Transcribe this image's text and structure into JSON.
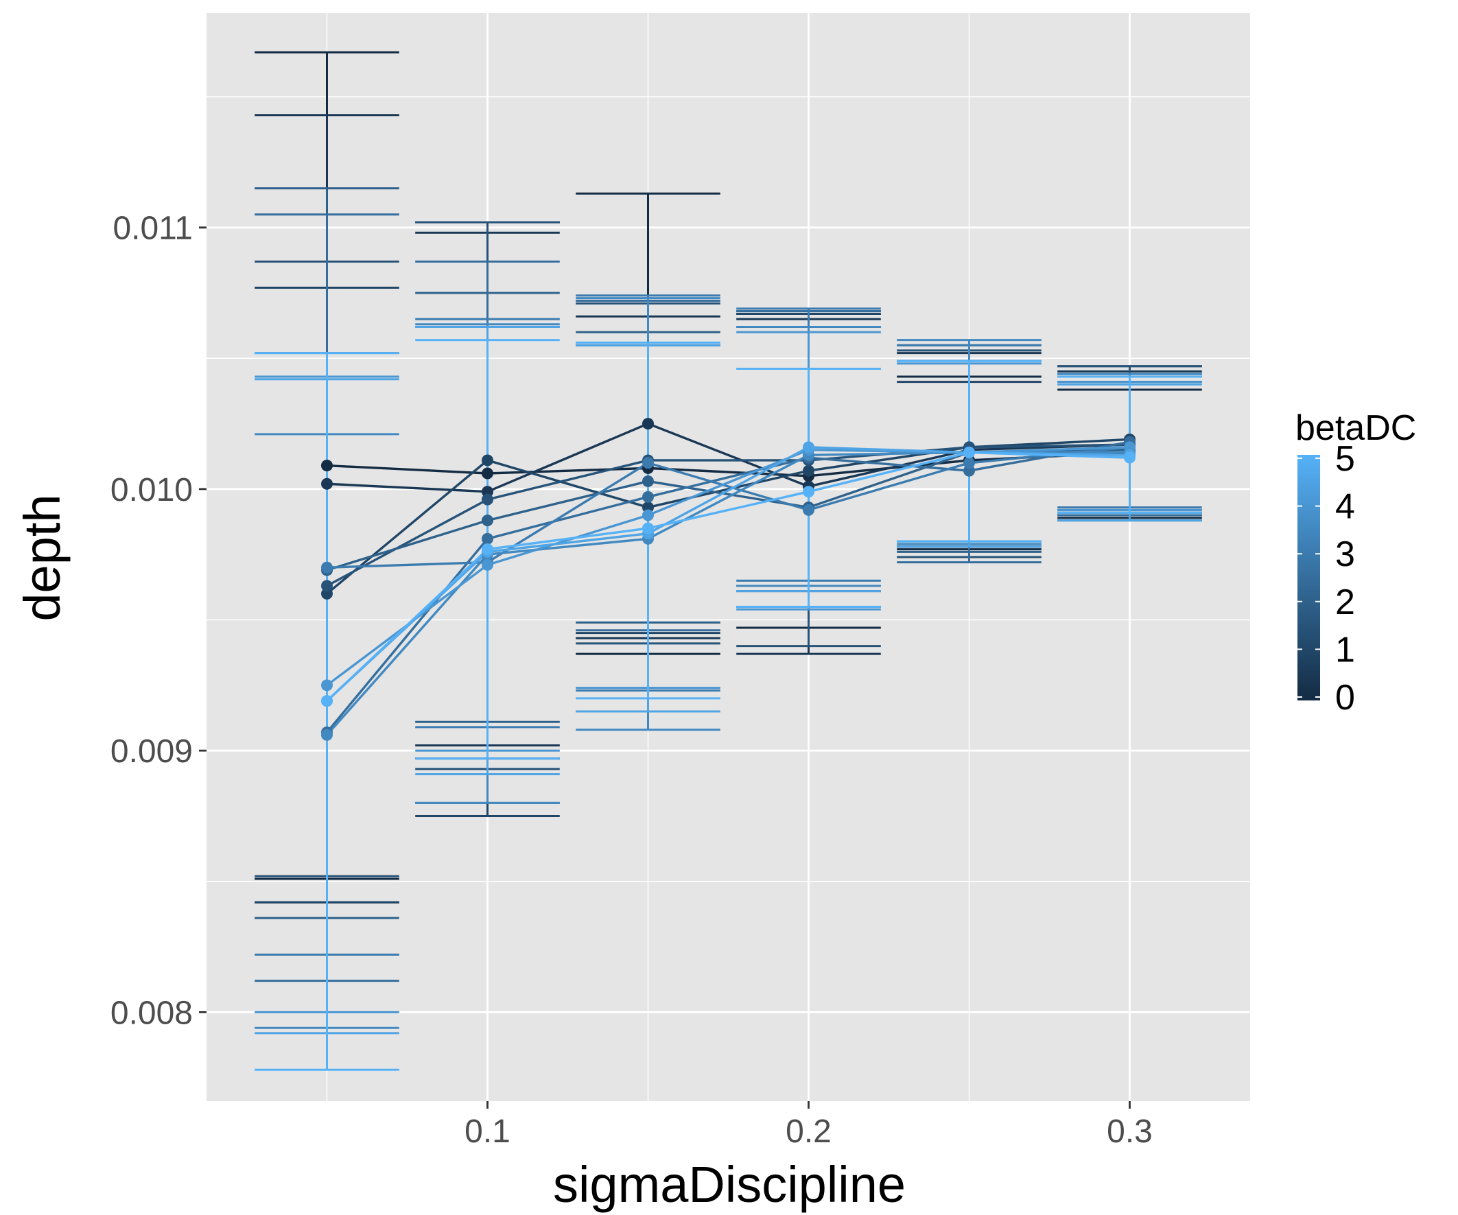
{
  "chart_data": {
    "type": "line",
    "xlabel": "sigmaDiscipline",
    "ylabel": "depth",
    "xlim": [
      0.0125,
      0.3375
    ],
    "ylim": [
      0.00766,
      0.01182
    ],
    "x_ticks": [
      0.1,
      0.2,
      0.3
    ],
    "x_tick_labels": [
      "0.1",
      "0.2",
      "0.3"
    ],
    "y_ticks": [
      0.008,
      0.009,
      0.01,
      0.011
    ],
    "y_tick_labels": [
      "0.008",
      "0.009",
      "0.010",
      "0.011"
    ],
    "x": [
      0.05,
      0.1,
      0.15,
      0.2,
      0.25,
      0.3
    ],
    "grid": true,
    "panel_background": "#e5e5e5",
    "legend": {
      "title": "betaDC",
      "position": "right",
      "labels": [
        "0",
        "1",
        "2",
        "3",
        "4",
        "5"
      ],
      "values": [
        0,
        1,
        2,
        3,
        4,
        5
      ],
      "color_low": "#132b43",
      "color_high": "#56b1f7"
    },
    "series": [
      {
        "beta": 0.0,
        "values": [
          0.01009,
          0.01006,
          0.01008,
          0.01005,
          0.01011,
          0.01014
        ],
        "lower": [
          0.00851,
          0.00897,
          0.00937,
          0.00947,
          0.00977,
          0.00989
        ],
        "upper": [
          0.01167,
          0.01102,
          0.01113,
          0.01067,
          0.01043,
          0.01038
        ]
      },
      {
        "beta": 0.5,
        "values": [
          0.01002,
          0.00999,
          0.01025,
          0.01001,
          0.01015,
          0.01017
        ],
        "lower": [
          0.00842,
          0.00902,
          0.00943,
          0.00937,
          0.00978,
          0.0099
        ],
        "upper": [
          0.01143,
          0.01098,
          0.01066,
          0.01065,
          0.01052,
          0.01045
        ]
      },
      {
        "beta": 1.0,
        "values": [
          0.0096,
          0.01011,
          0.00993,
          0.01007,
          0.01016,
          0.01019
        ],
        "lower": [
          0.00842,
          0.00875,
          0.00945,
          0.00955,
          0.00978,
          0.00991
        ],
        "upper": [
          0.01077,
          0.01102,
          0.01055,
          0.01067,
          0.01041,
          0.01047
        ]
      },
      {
        "beta": 1.5,
        "values": [
          0.00963,
          0.00996,
          0.01011,
          0.01011,
          0.01016,
          0.01017
        ],
        "lower": [
          0.00852,
          0.00893,
          0.00941,
          0.0094,
          0.00974,
          0.00988
        ],
        "upper": [
          0.01087,
          0.01102,
          0.01071,
          0.01068,
          0.01053,
          0.01047
        ]
      },
      {
        "beta": 2.0,
        "values": [
          0.00969,
          0.00988,
          0.01003,
          0.00993,
          0.01014,
          0.01015
        ],
        "lower": [
          0.00836,
          0.00911,
          0.00949,
          0.00961,
          0.00976,
          0.00992
        ],
        "upper": [
          0.01115,
          0.01075,
          0.0106,
          0.01062,
          0.01055,
          0.01041
        ]
      },
      {
        "beta": 2.5,
        "values": [
          0.00907,
          0.00981,
          0.00997,
          0.01012,
          0.01007,
          0.01018
        ],
        "lower": [
          0.00812,
          0.0088,
          0.00946,
          0.00963,
          0.00972,
          0.0099
        ],
        "upper": [
          0.01105,
          0.01087,
          0.01072,
          0.01068,
          0.01049,
          0.01043
        ]
      },
      {
        "beta": 3.0,
        "values": [
          0.0097,
          0.00972,
          0.0101,
          0.00992,
          0.0101,
          0.01016
        ],
        "lower": [
          0.00822,
          0.00909,
          0.00923,
          0.00965,
          0.0098,
          0.00993
        ],
        "upper": [
          0.01052,
          0.01065,
          0.01074,
          0.01069,
          0.01055,
          0.01044
        ]
      },
      {
        "beta": 3.5,
        "values": [
          0.00906,
          0.00975,
          0.00981,
          0.01013,
          0.01014,
          0.01014
        ],
        "lower": [
          0.00794,
          0.0088,
          0.00908,
          0.00963,
          0.00979,
          0.00991
        ],
        "upper": [
          0.01021,
          0.01063,
          0.01073,
          0.01062,
          0.01057,
          0.01044
        ]
      },
      {
        "beta": 4.0,
        "values": [
          0.00925,
          0.00971,
          0.0099,
          0.01015,
          0.01014,
          0.01016
        ],
        "lower": [
          0.008,
          0.009,
          0.00924,
          0.00954,
          0.0098,
          0.00992
        ],
        "upper": [
          0.01043,
          0.01062,
          0.01055,
          0.0106,
          0.01048,
          0.01041
        ]
      },
      {
        "beta": 4.5,
        "values": [
          0.00919,
          0.00976,
          0.00983,
          0.01016,
          0.01014,
          0.01013
        ],
        "lower": [
          0.00792,
          0.00891,
          0.00915,
          0.00961,
          0.00978,
          0.00988
        ],
        "upper": [
          0.01042,
          0.01062,
          0.01055,
          0.01046,
          0.01049,
          0.0104
        ]
      },
      {
        "beta": 5.0,
        "values": [
          0.00919,
          0.00977,
          0.00985,
          0.00999,
          0.01014,
          0.01012
        ],
        "lower": [
          0.00778,
          0.00897,
          0.0092,
          0.00955,
          0.0098,
          0.00991
        ],
        "upper": [
          0.01052,
          0.01057,
          0.01056,
          0.01046,
          0.01049,
          0.01043
        ]
      }
    ]
  }
}
